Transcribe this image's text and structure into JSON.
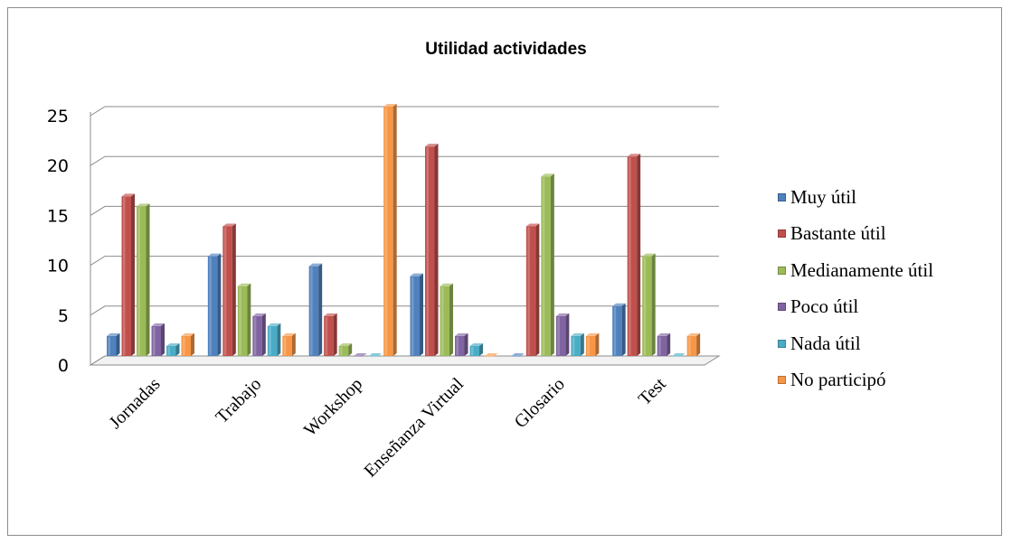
{
  "chart_data": {
    "type": "bar",
    "title": "Utilidad actividades",
    "categories": [
      "Jornadas",
      "Trabajo",
      "Workshop",
      "Enseñanza Virtual",
      "Glosario",
      "Test"
    ],
    "series": [
      {
        "name": "Muy útil",
        "color": "#4f81bd",
        "values": [
          2,
          10,
          9,
          8,
          0,
          5
        ]
      },
      {
        "name": "Bastante útil",
        "color": "#c0504d",
        "values": [
          16,
          13,
          4,
          21,
          13,
          20
        ]
      },
      {
        "name": "Medianamente útil",
        "color": "#9bbb59",
        "values": [
          15,
          7,
          1,
          7,
          18,
          10
        ]
      },
      {
        "name": "Poco útil",
        "color": "#8064a2",
        "values": [
          3,
          4,
          0,
          2,
          4,
          2
        ]
      },
      {
        "name": "Nada útil",
        "color": "#4bacc6",
        "values": [
          1,
          3,
          0,
          1,
          2,
          0
        ]
      },
      {
        "name": "No participó",
        "color": "#f79646",
        "values": [
          2,
          2,
          25,
          0,
          2,
          2
        ]
      }
    ],
    "y_ticks": [
      "0",
      "5",
      "10",
      "15",
      "20",
      "25"
    ],
    "ylim": [
      0,
      25
    ],
    "grid": true,
    "legend_position": "right"
  }
}
